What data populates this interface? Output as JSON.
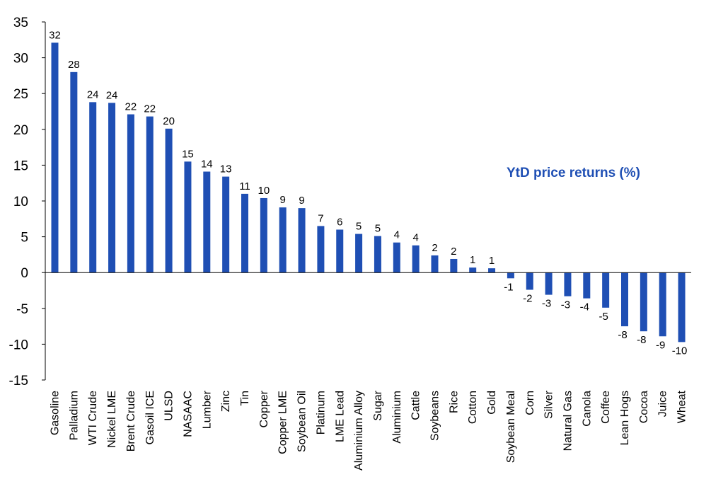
{
  "chart_data": {
    "type": "bar",
    "title": "YtD price returns (%)",
    "xlabel": "",
    "ylabel": "",
    "ylim": [
      -15,
      35
    ],
    "yticks": [
      35,
      30,
      25,
      20,
      15,
      10,
      5,
      0,
      -5,
      -10,
      -15
    ],
    "grid": false,
    "legend": "none",
    "bar_color": "#1f4fb4",
    "title_color": "#1f4fb4",
    "categories": [
      "Gasoline",
      "Palladium",
      "WTI Crude",
      "Nickel LME",
      "Brent Crude",
      "Gasoil ICE",
      "ULSD",
      "NASAAC",
      "Lumber",
      "Zinc",
      "Tin",
      "Copper",
      "Copper LME",
      "Soybean Oil",
      "Platinum",
      "LME Lead",
      "Aluminium Alloy",
      "Sugar",
      "Aluminium",
      "Cattle",
      "Soybeans",
      "Rice",
      "Cotton",
      "Gold",
      "Soybean Meal",
      "Corn",
      "Silver",
      "Natural Gas",
      "Canola",
      "Coffee",
      "Lean Hogs",
      "Cocoa",
      "Juice",
      "Wheat"
    ],
    "values": [
      32.1,
      28.0,
      23.8,
      23.7,
      22.1,
      21.8,
      20.1,
      15.5,
      14.1,
      13.4,
      11.0,
      10.4,
      9.1,
      9.0,
      6.5,
      6.0,
      5.4,
      5.1,
      4.2,
      3.8,
      2.4,
      1.9,
      0.7,
      0.6,
      -0.8,
      -2.4,
      -3.1,
      -3.3,
      -3.6,
      -4.9,
      -7.5,
      -8.2,
      -8.9,
      -9.7
    ],
    "data_labels": [
      "32",
      "28",
      "24",
      "24",
      "22",
      "22",
      "20",
      "15",
      "14",
      "13",
      "11",
      "10",
      "9",
      "9",
      "7",
      "6",
      "5",
      "5",
      "4",
      "4",
      "2",
      "2",
      "1",
      "1",
      "-1",
      "-2",
      "-3",
      "-3",
      "-4",
      "-5",
      "-8",
      "-8",
      "-9",
      "-10"
    ]
  }
}
